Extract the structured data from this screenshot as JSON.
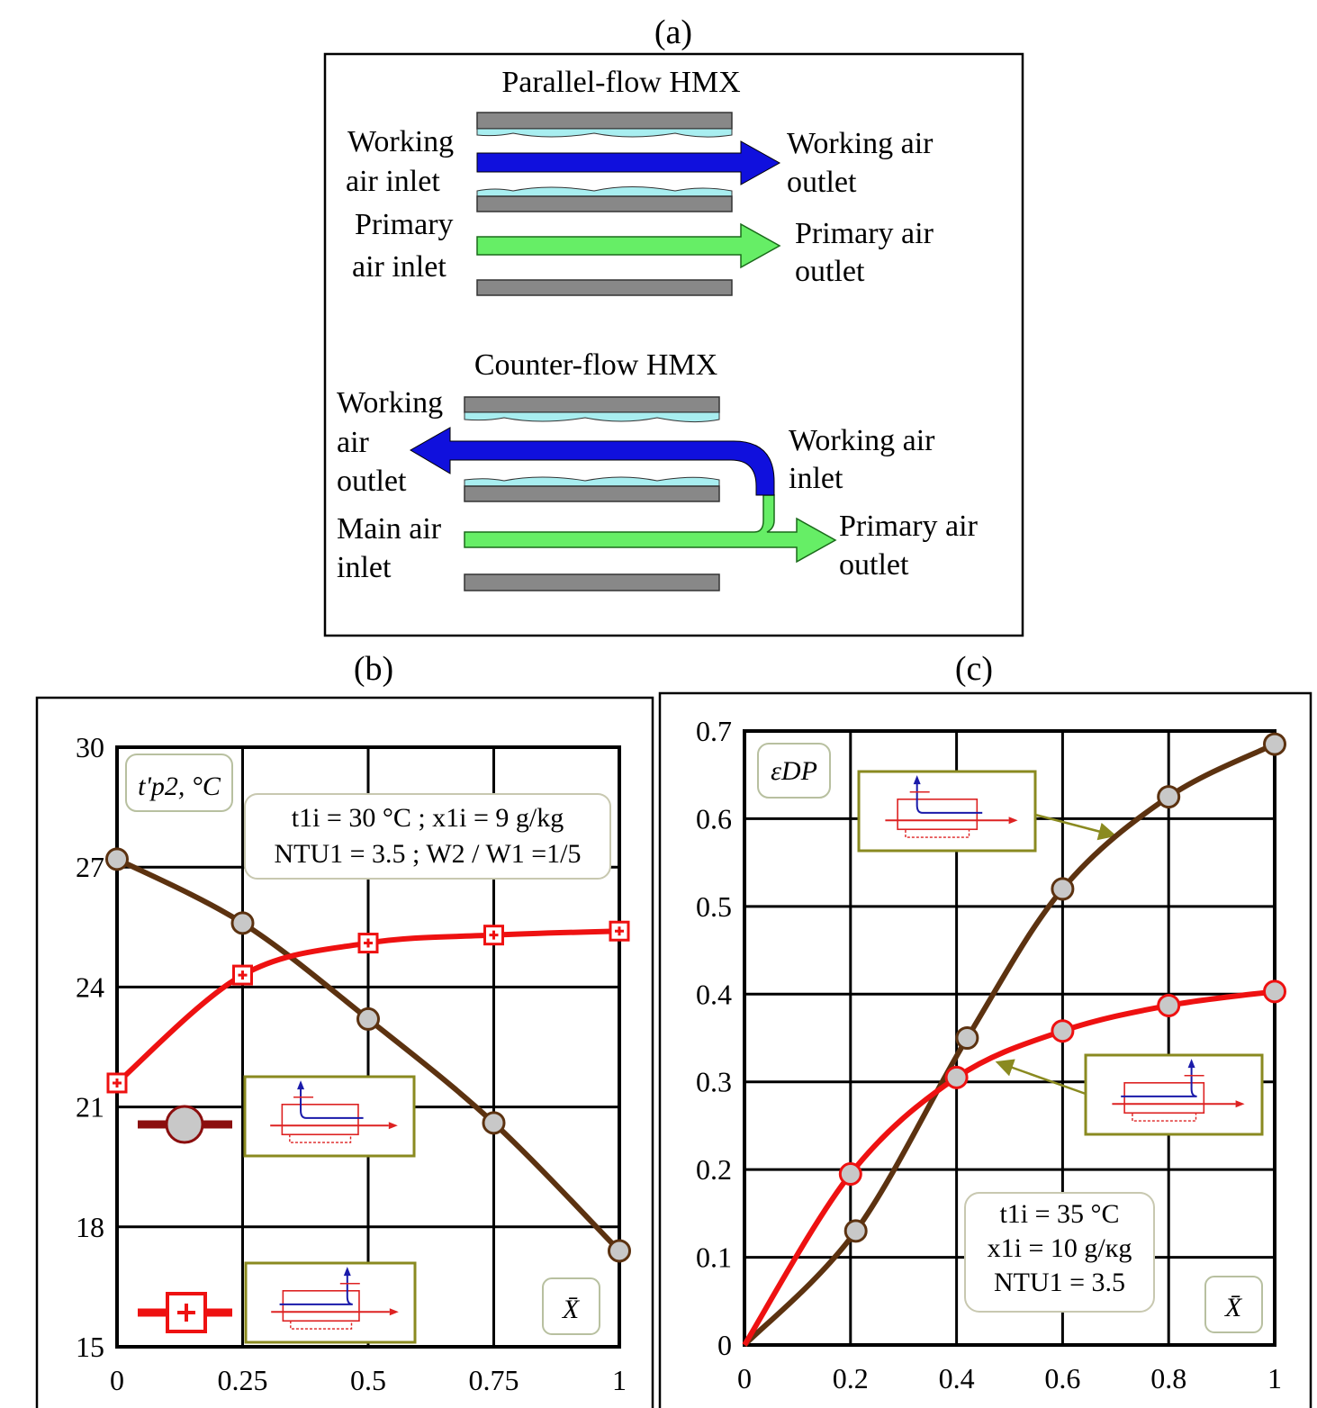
{
  "figure_labels": {
    "a": "(a)",
    "b": "(b)",
    "c": "(c)"
  },
  "diagram": {
    "parallel": {
      "title": "Parallel-flow HMX",
      "working_in": [
        "Working",
        "air inlet"
      ],
      "working_out": [
        "Working air",
        "outlet"
      ],
      "primary_in": [
        "Primary",
        "air inlet"
      ],
      "primary_out": [
        "Primary air",
        "outlet"
      ]
    },
    "counter": {
      "title": "Counter-flow HMX",
      "working_out": [
        "Working",
        "air",
        "outlet"
      ],
      "working_in": [
        "Working air",
        "inlet"
      ],
      "main_in": [
        "Main air",
        "inlet"
      ],
      "primary_out": [
        "Primary air",
        "outlet"
      ]
    },
    "colors": {
      "working": "#1010dd",
      "primary": "#66ee66",
      "plate": "#888888",
      "water": "#a8eef0"
    }
  },
  "chart_data": [
    {
      "type": "line",
      "panel": "(b)",
      "ylabel": "t'p2, °C",
      "xlabel": "X̄",
      "xlim": [
        0,
        1
      ],
      "ylim": [
        15,
        30
      ],
      "x_ticks": [
        "0",
        "0.25",
        "0.5",
        "0.75",
        "1"
      ],
      "y_ticks": [
        "15",
        "18",
        "21",
        "24",
        "27",
        "30"
      ],
      "grid": true,
      "annotation": [
        "t1i = 30 °C  ;  x1i = 9 g/kg",
        "NTU1 = 3.5  ;  W2 / W1 =1/5"
      ],
      "series": [
        {
          "marker": "circle",
          "color": "#5c3210",
          "x": [
            0,
            0.25,
            0.5,
            0.75,
            1
          ],
          "values": [
            27.2,
            25.6,
            23.2,
            20.6,
            17.4
          ]
        },
        {
          "marker": "square-plus",
          "color": "#ee1111",
          "x": [
            0,
            0.25,
            0.5,
            0.75,
            1
          ],
          "values": [
            21.6,
            24.3,
            25.1,
            25.3,
            25.4
          ]
        }
      ]
    },
    {
      "type": "line",
      "panel": "(c)",
      "ylabel": "εDP",
      "xlabel": "X̄",
      "xlim": [
        0,
        1
      ],
      "ylim": [
        0,
        0.7
      ],
      "x_ticks": [
        "0",
        "0.2",
        "0.4",
        "0.6",
        "0.8",
        "1"
      ],
      "y_ticks": [
        "0",
        "0.1",
        "0.2",
        "0.3",
        "0.4",
        "0.5",
        "0.6",
        "0.7"
      ],
      "grid": true,
      "annotation": [
        "t1i = 35 °C",
        "x1i = 10 g/кg",
        "NTU1 = 3.5"
      ],
      "series": [
        {
          "marker": "circle",
          "color": "#5c3210",
          "x": [
            0,
            0.21,
            0.42,
            0.6,
            0.8,
            1
          ],
          "values": [
            0,
            0.13,
            0.35,
            0.52,
            0.625,
            0.685
          ]
        },
        {
          "marker": "circle",
          "color": "#ee1111",
          "x": [
            0,
            0.2,
            0.4,
            0.6,
            0.8,
            1
          ],
          "values": [
            0,
            0.195,
            0.305,
            0.358,
            0.387,
            0.403
          ]
        }
      ]
    }
  ]
}
